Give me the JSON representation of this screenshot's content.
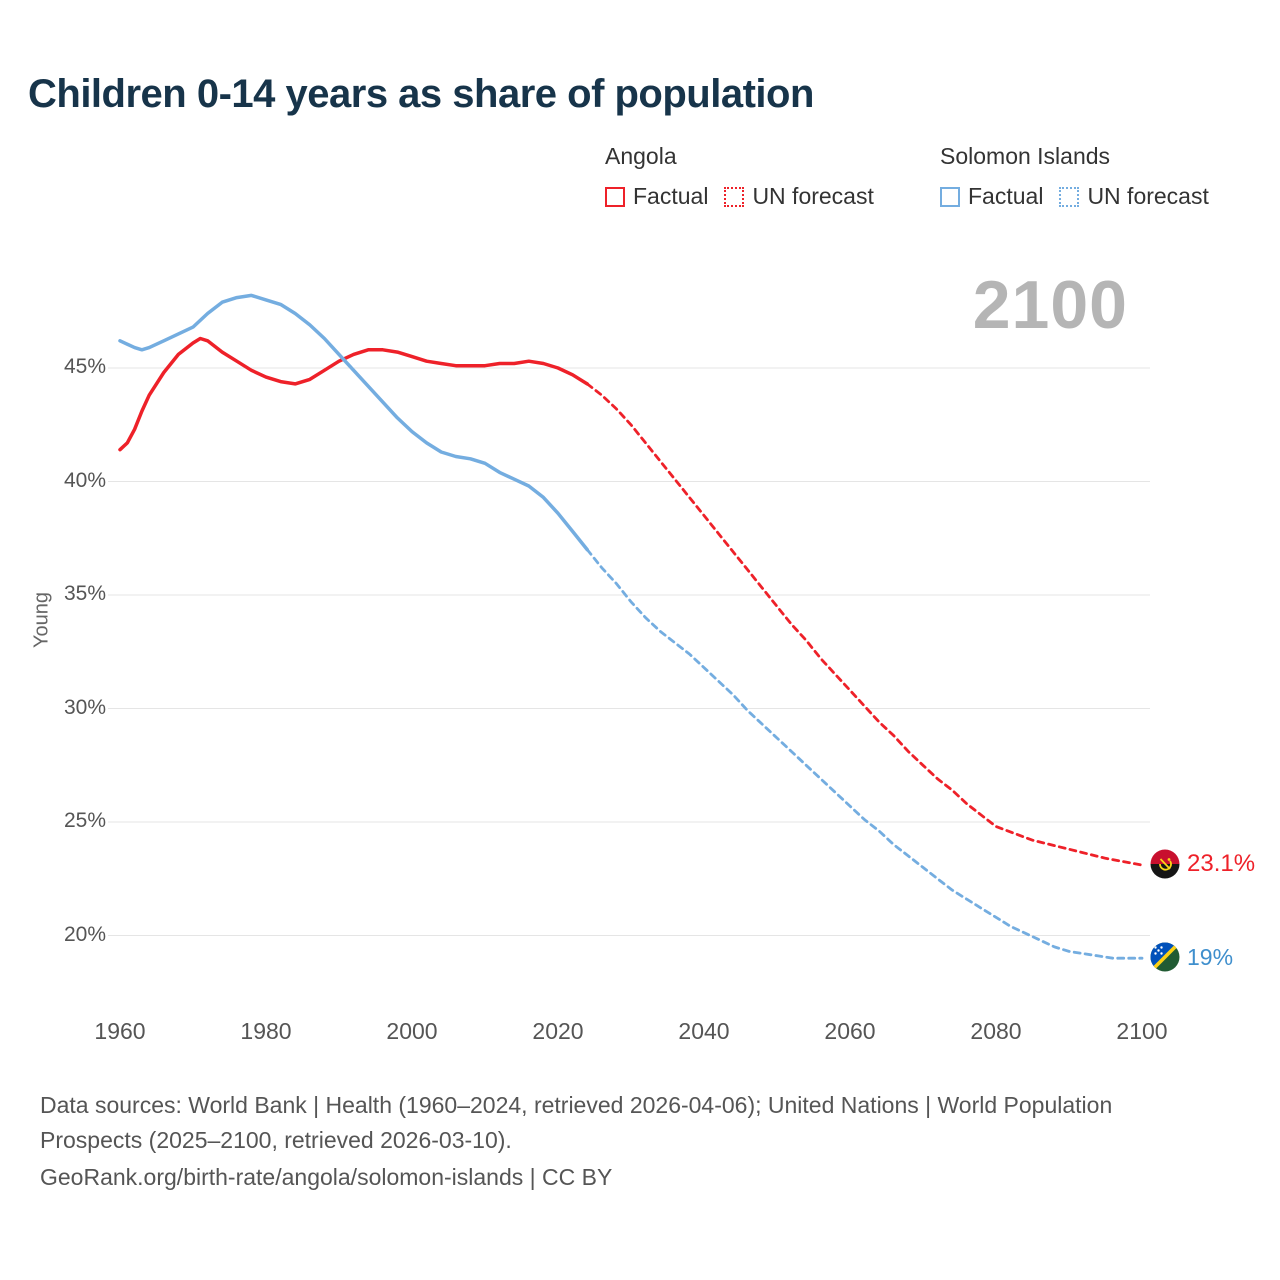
{
  "title": "Children 0-14 years as share of population",
  "watermark": "2100",
  "y_axis_label": "Young",
  "legend": {
    "angola": {
      "label": "Angola",
      "factual": "Factual",
      "forecast": "UN forecast",
      "color": "#ee2129"
    },
    "solomon": {
      "label": "Solomon Islands",
      "factual": "Factual",
      "forecast": "UN forecast",
      "color": "#74ade0"
    }
  },
  "end_labels": {
    "angola": "23.1%",
    "solomon": "19%"
  },
  "footer": {
    "sources_line": "Data sources: World Bank | Health (1960–2024, retrieved 2026-04-06); United Nations | World Population Prospects (2025–2100, retrieved 2026-03-10).",
    "attribution_line": "GeoRank.org/birth-rate/angola/solomon-islands | CC BY"
  },
  "chart_data": {
    "type": "line",
    "title": "Children 0-14 years as share of population",
    "xlabel": "",
    "ylabel": "Young",
    "grid": true,
    "legend_position": "top-right",
    "xlim": [
      1958,
      2112
    ],
    "ylim": [
      17.5,
      49.5
    ],
    "x_ticks": [
      1960,
      1980,
      2000,
      2020,
      2040,
      2060,
      2080,
      2100
    ],
    "y_ticks": [
      {
        "value": 20,
        "label": "20%"
      },
      {
        "value": 25,
        "label": "25%"
      },
      {
        "value": 30,
        "label": "30%"
      },
      {
        "value": 35,
        "label": "35%"
      },
      {
        "value": 40,
        "label": "40%"
      },
      {
        "value": 45,
        "label": "45%"
      }
    ],
    "series": [
      {
        "id": "angola-factual",
        "name": "Angola Factual",
        "style": "solid",
        "color": "#ee2129",
        "points": [
          [
            1960,
            41.4
          ],
          [
            1961,
            41.7
          ],
          [
            1962,
            42.3
          ],
          [
            1963,
            43.1
          ],
          [
            1964,
            43.8
          ],
          [
            1966,
            44.8
          ],
          [
            1968,
            45.6
          ],
          [
            1970,
            46.1
          ],
          [
            1971,
            46.3
          ],
          [
            1972,
            46.2
          ],
          [
            1974,
            45.7
          ],
          [
            1976,
            45.3
          ],
          [
            1978,
            44.9
          ],
          [
            1980,
            44.6
          ],
          [
            1982,
            44.4
          ],
          [
            1984,
            44.3
          ],
          [
            1986,
            44.5
          ],
          [
            1988,
            44.9
          ],
          [
            1990,
            45.3
          ],
          [
            1992,
            45.6
          ],
          [
            1994,
            45.8
          ],
          [
            1996,
            45.8
          ],
          [
            1998,
            45.7
          ],
          [
            2000,
            45.5
          ],
          [
            2002,
            45.3
          ],
          [
            2004,
            45.2
          ],
          [
            2006,
            45.1
          ],
          [
            2008,
            45.1
          ],
          [
            2010,
            45.1
          ],
          [
            2012,
            45.2
          ],
          [
            2014,
            45.2
          ],
          [
            2016,
            45.3
          ],
          [
            2018,
            45.2
          ],
          [
            2020,
            45.0
          ],
          [
            2022,
            44.7
          ],
          [
            2024,
            44.3
          ]
        ]
      },
      {
        "id": "angola-forecast",
        "name": "Angola UN forecast",
        "style": "dashed",
        "color": "#ee2129",
        "points": [
          [
            2024,
            44.3
          ],
          [
            2026,
            43.8
          ],
          [
            2028,
            43.2
          ],
          [
            2030,
            42.5
          ],
          [
            2032,
            41.7
          ],
          [
            2034,
            40.9
          ],
          [
            2036,
            40.1
          ],
          [
            2038,
            39.3
          ],
          [
            2040,
            38.5
          ],
          [
            2042,
            37.7
          ],
          [
            2044,
            36.9
          ],
          [
            2046,
            36.1
          ],
          [
            2048,
            35.3
          ],
          [
            2050,
            34.5
          ],
          [
            2052,
            33.7
          ],
          [
            2054,
            33.0
          ],
          [
            2056,
            32.2
          ],
          [
            2058,
            31.5
          ],
          [
            2060,
            30.8
          ],
          [
            2062,
            30.1
          ],
          [
            2064,
            29.4
          ],
          [
            2066,
            28.8
          ],
          [
            2068,
            28.1
          ],
          [
            2070,
            27.5
          ],
          [
            2072,
            26.9
          ],
          [
            2074,
            26.4
          ],
          [
            2076,
            25.8
          ],
          [
            2078,
            25.3
          ],
          [
            2080,
            24.8
          ],
          [
            2085,
            24.2
          ],
          [
            2090,
            23.8
          ],
          [
            2095,
            23.4
          ],
          [
            2100,
            23.1
          ]
        ]
      },
      {
        "id": "solomon-factual",
        "name": "Solomon Islands Factual",
        "style": "solid",
        "color": "#74ade0",
        "points": [
          [
            1960,
            46.2
          ],
          [
            1962,
            45.9
          ],
          [
            1963,
            45.8
          ],
          [
            1964,
            45.9
          ],
          [
            1966,
            46.2
          ],
          [
            1968,
            46.5
          ],
          [
            1970,
            46.8
          ],
          [
            1972,
            47.4
          ],
          [
            1974,
            47.9
          ],
          [
            1976,
            48.1
          ],
          [
            1978,
            48.2
          ],
          [
            1980,
            48.0
          ],
          [
            1982,
            47.8
          ],
          [
            1984,
            47.4
          ],
          [
            1986,
            46.9
          ],
          [
            1988,
            46.3
          ],
          [
            1990,
            45.6
          ],
          [
            1992,
            44.9
          ],
          [
            1994,
            44.2
          ],
          [
            1996,
            43.5
          ],
          [
            1998,
            42.8
          ],
          [
            2000,
            42.2
          ],
          [
            2002,
            41.7
          ],
          [
            2004,
            41.3
          ],
          [
            2006,
            41.1
          ],
          [
            2008,
            41.0
          ],
          [
            2010,
            40.8
          ],
          [
            2012,
            40.4
          ],
          [
            2014,
            40.1
          ],
          [
            2016,
            39.8
          ],
          [
            2018,
            39.3
          ],
          [
            2020,
            38.6
          ],
          [
            2022,
            37.8
          ],
          [
            2024,
            37.0
          ]
        ]
      },
      {
        "id": "solomon-forecast",
        "name": "Solomon Islands UN forecast",
        "style": "dashed",
        "color": "#74ade0",
        "points": [
          [
            2024,
            37.0
          ],
          [
            2026,
            36.2
          ],
          [
            2028,
            35.5
          ],
          [
            2030,
            34.7
          ],
          [
            2032,
            34.0
          ],
          [
            2034,
            33.4
          ],
          [
            2036,
            32.9
          ],
          [
            2038,
            32.4
          ],
          [
            2040,
            31.8
          ],
          [
            2042,
            31.2
          ],
          [
            2044,
            30.6
          ],
          [
            2046,
            29.9
          ],
          [
            2048,
            29.3
          ],
          [
            2050,
            28.7
          ],
          [
            2052,
            28.1
          ],
          [
            2054,
            27.5
          ],
          [
            2056,
            26.9
          ],
          [
            2058,
            26.3
          ],
          [
            2060,
            25.7
          ],
          [
            2062,
            25.1
          ],
          [
            2064,
            24.6
          ],
          [
            2066,
            24.0
          ],
          [
            2068,
            23.5
          ],
          [
            2070,
            23.0
          ],
          [
            2072,
            22.5
          ],
          [
            2074,
            22.0
          ],
          [
            2076,
            21.6
          ],
          [
            2078,
            21.2
          ],
          [
            2080,
            20.8
          ],
          [
            2082,
            20.4
          ],
          [
            2084,
            20.1
          ],
          [
            2086,
            19.8
          ],
          [
            2088,
            19.5
          ],
          [
            2090,
            19.3
          ],
          [
            2092,
            19.2
          ],
          [
            2094,
            19.1
          ],
          [
            2096,
            19.0
          ],
          [
            2098,
            19.0
          ],
          [
            2100,
            19.0
          ]
        ]
      }
    ]
  }
}
